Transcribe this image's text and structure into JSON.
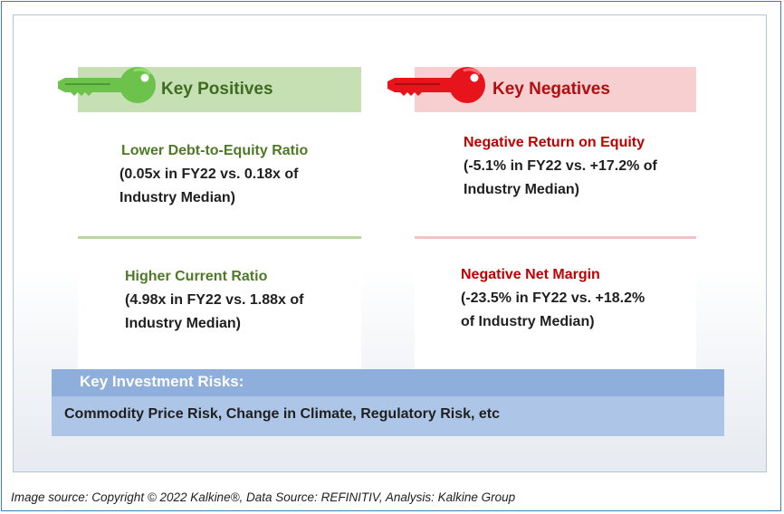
{
  "positives": {
    "title": "Key Positives",
    "items": [
      {
        "label": "Lower Debt-to-Equity Ratio",
        "line1": "(0.05x in FY22 vs. 0.18x of",
        "line2": "Industry Median)"
      },
      {
        "label": "Higher Current Ratio",
        "line1": "(4.98x in FY22 vs. 1.88x of",
        "line2": "Industry Median)"
      }
    ],
    "icon": "green-key-icon",
    "color": "#3f6b21"
  },
  "negatives": {
    "title": "Key Negatives",
    "items": [
      {
        "label": "Negative Return on Equity",
        "line1": "(-5.1% in FY22 vs. +17.2% of",
        "line2": "Industry Median)"
      },
      {
        "label": "Negative Net Margin",
        "line1": "(-23.5% in FY22 vs. +18.2%",
        "line2": "of Industry Median)"
      }
    ],
    "icon": "red-key-icon",
    "color": "#c00000"
  },
  "risks": {
    "title": "Key Investment Risks:",
    "text": "Commodity Price Risk, Change in Climate, Regulatory Risk, etc"
  },
  "caption": "Image source: Copyright © 2022 Kalkine®, Data Source: REFINITIV, Analysis: Kalkine Group"
}
